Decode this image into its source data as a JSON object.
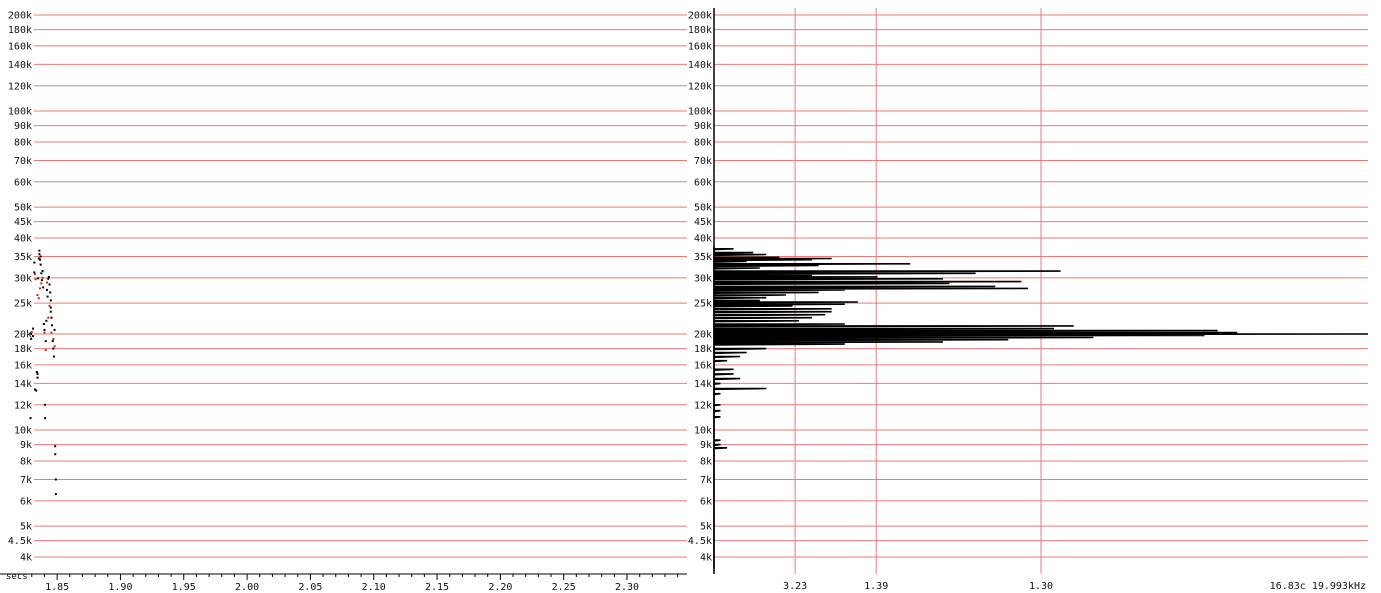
{
  "colors": {
    "grid": "#ef7a7a",
    "axis": "#000000",
    "curve": "#000000",
    "dot_primary": "#000000",
    "dot_secondary": "#cc2222",
    "background": "#ffffff"
  },
  "chart_data": [
    {
      "type": "scatter",
      "title": "",
      "xlabel": "secs",
      "ylabel": "",
      "y_scale": "log",
      "xlim": [
        1.827,
        2.345
      ],
      "ylim": [
        3700,
        210000
      ],
      "y_ticks": [
        {
          "value": 200000,
          "label": "200k"
        },
        {
          "value": 180000,
          "label": "180k"
        },
        {
          "value": 160000,
          "label": "160k"
        },
        {
          "value": 140000,
          "label": "140k"
        },
        {
          "value": 120000,
          "label": "120k"
        },
        {
          "value": 100000,
          "label": "100k"
        },
        {
          "value": 90000,
          "label": "90k"
        },
        {
          "value": 80000,
          "label": "80k"
        },
        {
          "value": 70000,
          "label": "70k"
        },
        {
          "value": 60000,
          "label": "60k"
        },
        {
          "value": 50000,
          "label": "50k"
        },
        {
          "value": 45000,
          "label": "45k"
        },
        {
          "value": 40000,
          "label": "40k"
        },
        {
          "value": 35000,
          "label": "35k"
        },
        {
          "value": 30000,
          "label": "30k"
        },
        {
          "value": 25000,
          "label": "25k"
        },
        {
          "value": 20000,
          "label": "20k"
        },
        {
          "value": 18000,
          "label": "18k"
        },
        {
          "value": 16000,
          "label": "16k"
        },
        {
          "value": 14000,
          "label": "14k"
        },
        {
          "value": 12000,
          "label": "12k"
        },
        {
          "value": 10000,
          "label": "10k"
        },
        {
          "value": 9000,
          "label": "9k"
        },
        {
          "value": 8000,
          "label": "8k"
        },
        {
          "value": 7000,
          "label": "7k"
        },
        {
          "value": 6000,
          "label": "6k"
        },
        {
          "value": 5000,
          "label": "5k"
        },
        {
          "value": 4500,
          "label": "4.5k"
        },
        {
          "value": 4000,
          "label": "4k"
        }
      ],
      "x_ticks": [
        {
          "value": 1.85,
          "label": "1.85"
        },
        {
          "value": 1.9,
          "label": "1.90"
        },
        {
          "value": 1.95,
          "label": "1.95"
        },
        {
          "value": 2.0,
          "label": "2.00"
        },
        {
          "value": 2.05,
          "label": "2.05"
        },
        {
          "value": 2.1,
          "label": "2.10"
        },
        {
          "value": 2.15,
          "label": "2.15"
        },
        {
          "value": 2.2,
          "label": "2.20"
        },
        {
          "value": 2.25,
          "label": "2.25"
        },
        {
          "value": 2.3,
          "label": "2.30"
        }
      ],
      "grid": "horizontal",
      "series": [
        {
          "color": "#000000",
          "points": [
            [
              1.8295,
              20000
            ],
            [
              1.8295,
              19300
            ],
            [
              1.831,
              20800
            ],
            [
              1.831,
              19700
            ],
            [
              1.832,
              33500
            ],
            [
              1.832,
              31200
            ],
            [
              1.8325,
              13400
            ],
            [
              1.8335,
              13300
            ],
            [
              1.8345,
              15000
            ],
            [
              1.8345,
              14600
            ],
            [
              1.835,
              29900
            ],
            [
              1.8355,
              34500
            ],
            [
              1.836,
              36500
            ],
            [
              1.836,
              35600
            ],
            [
              1.8365,
              34200
            ],
            [
              1.837,
              33000
            ],
            [
              1.8375,
              31000
            ],
            [
              1.838,
              29500
            ],
            [
              1.8385,
              31500
            ],
            [
              1.839,
              28000
            ],
            [
              1.8395,
              21500
            ],
            [
              1.84,
              20600
            ],
            [
              1.8405,
              12000
            ],
            [
              1.8405,
              10900
            ],
            [
              1.841,
              19000
            ],
            [
              1.8415,
              22000
            ],
            [
              1.842,
              27500
            ],
            [
              1.8425,
              26200
            ],
            [
              1.843,
              29800
            ],
            [
              1.8435,
              30200
            ],
            [
              1.844,
              28600
            ],
            [
              1.8445,
              27000
            ],
            [
              1.845,
              25500
            ],
            [
              1.845,
              23500
            ],
            [
              1.8455,
              22500
            ],
            [
              1.846,
              21300
            ],
            [
              1.8465,
              19000
            ],
            [
              1.847,
              18000
            ],
            [
              1.8475,
              17000
            ],
            [
              1.848,
              20600
            ],
            [
              1.8485,
              8900
            ],
            [
              1.8485,
              8400
            ],
            [
              1.849,
              7000
            ],
            [
              1.849,
              6300
            ],
            [
              1.829,
              10900
            ],
            [
              1.834,
              15200
            ],
            [
              1.837,
              35000
            ],
            [
              1.845,
              24200
            ]
          ]
        },
        {
          "color": "#cc2222",
          "points": [
            [
              1.83,
              20300
            ],
            [
              1.8325,
              30800
            ],
            [
              1.833,
              29700
            ],
            [
              1.8345,
              26500
            ],
            [
              1.8355,
              25900
            ],
            [
              1.8365,
              27800
            ],
            [
              1.8375,
              28800
            ],
            [
              1.8385,
              30000
            ],
            [
              1.84,
              20200
            ],
            [
              1.841,
              17800
            ],
            [
              1.842,
              29000
            ],
            [
              1.843,
              22500
            ],
            [
              1.844,
              24500
            ],
            [
              1.8455,
              20200
            ],
            [
              1.847,
              19300
            ],
            [
              1.848,
              18300
            ]
          ]
        }
      ]
    },
    {
      "type": "line",
      "title": "",
      "xlabel": "",
      "ylabel": "",
      "y_scale": "log",
      "ylim": [
        3700,
        210000
      ],
      "x_ticks": [
        {
          "value": 0.124,
          "label": "3.23"
        },
        {
          "value": 0.248,
          "label": "1.39"
        },
        {
          "value": 0.5,
          "label": "1.30"
        }
      ],
      "x_annotation": "16.83c 19.993kHz",
      "grid": "horizontal and vertical",
      "y_ticks_same_as_left": true,
      "profile": [
        [
          37500,
          0.0
        ],
        [
          37000,
          0.03
        ],
        [
          36000,
          0.06
        ],
        [
          35500,
          0.08
        ],
        [
          34800,
          0.1
        ],
        [
          34200,
          0.15
        ],
        [
          34500,
          0.18
        ],
        [
          33800,
          0.05
        ],
        [
          33200,
          0.3
        ],
        [
          32800,
          0.16
        ],
        [
          32200,
          0.07
        ],
        [
          31500,
          0.53
        ],
        [
          31000,
          0.4
        ],
        [
          30500,
          0.15
        ],
        [
          30200,
          0.25
        ],
        [
          29800,
          0.35
        ],
        [
          29200,
          0.47
        ],
        [
          28800,
          0.36
        ],
        [
          28200,
          0.43
        ],
        [
          27800,
          0.48
        ],
        [
          27500,
          0.2
        ],
        [
          27000,
          0.16
        ],
        [
          26500,
          0.11
        ],
        [
          26000,
          0.08
        ],
        [
          25500,
          0.07
        ],
        [
          25200,
          0.22
        ],
        [
          24800,
          0.2
        ],
        [
          24500,
          0.12
        ],
        [
          24000,
          0.18
        ],
        [
          23500,
          0.18
        ],
        [
          23000,
          0.17
        ],
        [
          22500,
          0.15
        ],
        [
          22000,
          0.13
        ],
        [
          21500,
          0.2
        ],
        [
          21200,
          0.55
        ],
        [
          20800,
          0.52
        ],
        [
          20500,
          0.77
        ],
        [
          20200,
          0.8
        ],
        [
          20000,
          1.0
        ],
        [
          19800,
          0.75
        ],
        [
          19500,
          0.58
        ],
        [
          19200,
          0.45
        ],
        [
          18900,
          0.35
        ],
        [
          18600,
          0.2
        ],
        [
          18000,
          0.08
        ],
        [
          17500,
          0.05
        ],
        [
          17000,
          0.04
        ],
        [
          16500,
          0.02
        ],
        [
          16000,
          0.0
        ],
        [
          15500,
          0.03
        ],
        [
          15000,
          0.03
        ],
        [
          14500,
          0.04
        ],
        [
          14000,
          0.01
        ],
        [
          13500,
          0.08
        ],
        [
          13000,
          0.01
        ],
        [
          12000,
          0.01
        ],
        [
          11500,
          0.01
        ],
        [
          11000,
          0.01
        ],
        [
          10200,
          0.0
        ],
        [
          9800,
          0.0
        ],
        [
          9300,
          0.01
        ],
        [
          9000,
          0.01
        ],
        [
          8800,
          0.02
        ],
        [
          8500,
          0.0
        ],
        [
          8000,
          0.0
        ],
        [
          7000,
          0.0
        ],
        [
          6000,
          0.0
        ],
        [
          5000,
          0.0
        ],
        [
          4500,
          0.0
        ],
        [
          4000,
          0.0
        ],
        [
          3700,
          0.0
        ]
      ]
    }
  ]
}
